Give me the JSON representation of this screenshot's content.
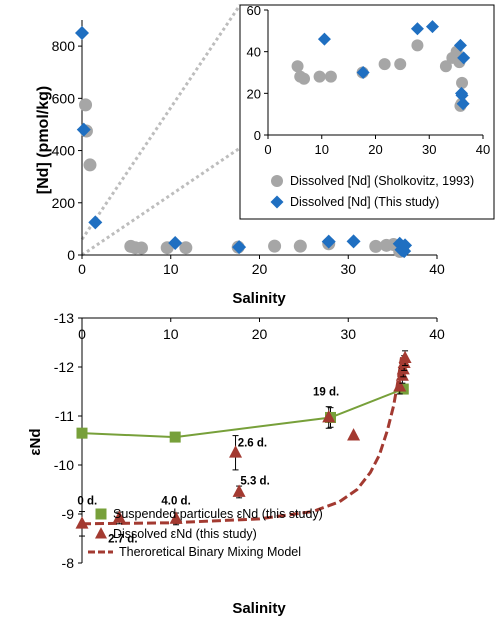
{
  "chart_data": [
    {
      "type": "scatter",
      "ylabel": "[Nd] (pmol/kg)",
      "xlabel": "Salinity",
      "xlim": [
        0,
        40
      ],
      "ylim": [
        0,
        900
      ],
      "xticks": [
        0,
        10,
        20,
        30,
        40
      ],
      "yticks": [
        0,
        200,
        400,
        600,
        800
      ],
      "series": [
        {
          "name": "Dissolved [Nd]  (Sholkovitz, 1993)",
          "color": "#a6a6a6",
          "marker": "circle",
          "points": [
            [
              0.4,
              575
            ],
            [
              0.5,
              475
            ],
            [
              0.9,
              345
            ],
            [
              5.5,
              33
            ],
            [
              6.0,
              28
            ],
            [
              6.7,
              27
            ],
            [
              9.6,
              28
            ],
            [
              11.7,
              28
            ],
            [
              17.6,
              30
            ],
            [
              21.7,
              34
            ],
            [
              24.6,
              34
            ],
            [
              27.8,
              43
            ],
            [
              33.1,
              33
            ],
            [
              34.3,
              37
            ],
            [
              35.1,
              40
            ],
            [
              35.6,
              35
            ],
            [
              35.8,
              14
            ],
            [
              36.0,
              15
            ],
            [
              36.1,
              25
            ]
          ]
        },
        {
          "name": "Dissolved [Nd] (This study)",
          "color": "#1f6fc1",
          "marker": "diamond",
          "points": [
            [
              0.0,
              850
            ],
            [
              0.2,
              480
            ],
            [
              1.5,
              125
            ],
            [
              10.5,
              46
            ],
            [
              17.7,
              30
            ],
            [
              27.8,
              51
            ],
            [
              30.6,
              52
            ],
            [
              35.8,
              43
            ],
            [
              36.0,
              20
            ],
            [
              36.1,
              19
            ],
            [
              36.3,
              15
            ],
            [
              36.4,
              37
            ]
          ]
        }
      ]
    },
    {
      "type": "scatter",
      "subtype": "inset zoom",
      "xlim": [
        0,
        40
      ],
      "ylim": [
        0,
        60
      ],
      "xticks": [
        0,
        10,
        20,
        30,
        40
      ],
      "yticks": [
        0,
        20,
        40,
        60
      ],
      "legend": [
        "Dissolved [Nd]  (Sholkovitz, 1993)",
        "Dissolved [Nd] (This study)"
      ],
      "legend_position": "bottom"
    },
    {
      "type": "line",
      "ylabel": "εNd",
      "xlabel": "Salinity",
      "xlim": [
        0,
        40
      ],
      "ylim": [
        -13,
        -8
      ],
      "xticks": [
        0,
        10,
        20,
        30,
        40
      ],
      "yticks": [
        -8,
        -9,
        -10,
        -11,
        -12,
        -13
      ],
      "series": [
        {
          "name": "Suspended particules εNd (this study)",
          "color": "#77a03a",
          "marker": "square",
          "points": [
            [
              0,
              -10.65
            ],
            [
              10.5,
              -10.57
            ],
            [
              28,
              -10.97
            ],
            [
              36.2,
              -11.55
            ]
          ],
          "errors": [
            0,
            0,
            0.2,
            0
          ]
        },
        {
          "name": "Dissolved εNd (this study)",
          "color": "#a33a31",
          "marker": "triangle",
          "points": [
            [
              0,
              -8.8
            ],
            [
              4.2,
              -8.92
            ],
            [
              10.6,
              -8.9
            ],
            [
              17.7,
              -9.45
            ],
            [
              17.3,
              -10.25
            ],
            [
              27.8,
              -10.97
            ],
            [
              30.6,
              -10.6
            ],
            [
              35.8,
              -11.6
            ],
            [
              36.1,
              -11.82
            ],
            [
              36.2,
              -11.95
            ],
            [
              36.3,
              -12.08
            ],
            [
              36.4,
              -12.18
            ]
          ],
          "errors": [
            0.25,
            0.12,
            0.12,
            0.12,
            0.35,
            0.22,
            0,
            0.15,
            0.15,
            0.15,
            0.15,
            0.15
          ]
        },
        {
          "name": "Theroretical Binary Mixing Model",
          "color": "#a33a31",
          "style": "dashed",
          "points": [
            [
              0,
              -8.8
            ],
            [
              10,
              -8.82
            ],
            [
              20,
              -8.9
            ],
            [
              26,
              -9.05
            ],
            [
              29,
              -9.25
            ],
            [
              31,
              -9.5
            ],
            [
              32.5,
              -9.85
            ],
            [
              33.5,
              -10.2
            ],
            [
              34.4,
              -10.7
            ],
            [
              35.1,
              -11.2
            ],
            [
              35.6,
              -11.7
            ],
            [
              36.0,
              -12.2
            ]
          ]
        }
      ],
      "annotations": [
        {
          "text": "2.7 d.",
          "x": 4.6,
          "y": -8.5
        },
        {
          "text": "0 d.",
          "x": 0.6,
          "y": -9.28
        },
        {
          "text": "4.0 d.",
          "x": 10.6,
          "y": -9.28
        },
        {
          "text": "5.3 d.",
          "x": 19.5,
          "y": -9.68
        },
        {
          "text": "2.6 d.",
          "x": 19.2,
          "y": -10.46
        },
        {
          "text": "19 d.",
          "x": 27.5,
          "y": -11.5
        }
      ]
    }
  ]
}
